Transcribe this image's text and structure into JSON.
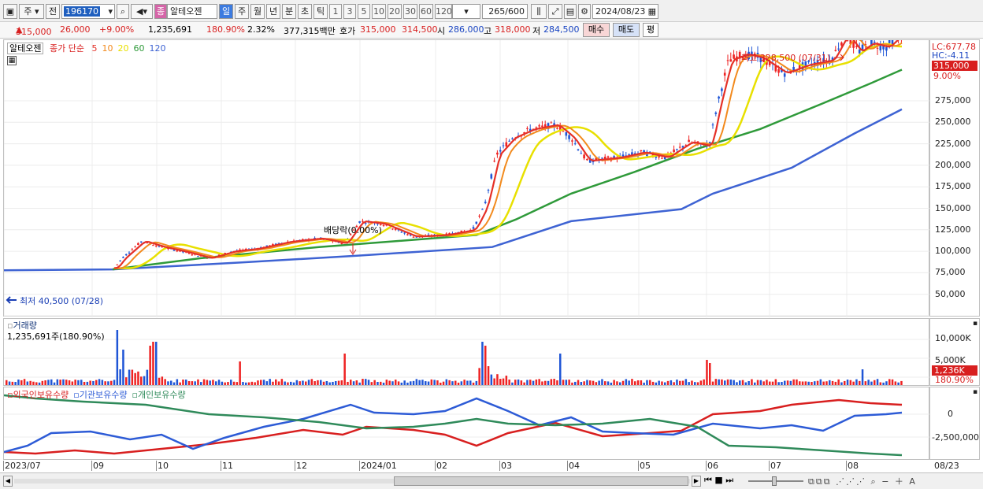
{
  "toolbar": {
    "market": "주",
    "type": "전",
    "code": "196170",
    "name": "알테오젠",
    "period_tabs": [
      "일",
      "주",
      "월",
      "년",
      "분",
      "초",
      "틱"
    ],
    "active_period": "일",
    "intervals": [
      "1",
      "3",
      "5",
      "10",
      "20",
      "30",
      "60",
      "120"
    ],
    "count": "265",
    "count_max": "/600",
    "date": "2024/08/23",
    "name_tag": "종"
  },
  "quote": {
    "price": "315,000",
    "change": "26,000",
    "rate": "+9.00%",
    "volume": "1,235,691",
    "vol_ratio": "180.90%",
    "turnover": "2.32%",
    "amount": "377,315백만",
    "ask_label": "호가",
    "ask": "315,000",
    "bid": "314,500",
    "open_label": "시",
    "open": "286,000",
    "high_label": "고",
    "high": "318,000",
    "low_label": "저",
    "low": "284,500",
    "buy": "매수",
    "sell": "매도",
    "eval": "평"
  },
  "price_pane": {
    "legend_name": "알테오젠",
    "legend_ma": "종가 단순",
    "ma": [
      {
        "label": "5",
        "color": "#e53027"
      },
      {
        "label": "10",
        "color": "#f28a1d"
      },
      {
        "label": "20",
        "color": "#e8e000"
      },
      {
        "label": "60",
        "color": "#2f9a3a"
      },
      {
        "label": "120",
        "color": "#3e63d3"
      }
    ],
    "max_note": "최고 328,500 (07/31)",
    "min_note": "최저 40,500 (07/28)",
    "event_note": "배당락(0.00%)",
    "lc": "LC:677.78",
    "hc": "HC:-4.11",
    "last_price": "315,000",
    "last_rate": "9.00%",
    "y_ticks": [
      "275,000",
      "250,000",
      "225,000",
      "200,000",
      "175,000",
      "150,000",
      "125,000",
      "100,000",
      "75,000",
      "50,000"
    ]
  },
  "volume_pane": {
    "title": "거래량",
    "value": "1,235,691주(180.90%)",
    "y_ticks": [
      "10,000K",
      "5,000K"
    ],
    "last": "1,236K",
    "last_rate": "180.90%"
  },
  "holdings_pane": {
    "series": [
      {
        "name": "외국인보유수량",
        "color": "#d81f1f"
      },
      {
        "name": "기관보유수량",
        "color": "#2d5bd6"
      },
      {
        "name": "개인보유수량",
        "color": "#2f8a5a"
      }
    ],
    "y_ticks": [
      "0",
      "-2,500,000"
    ]
  },
  "x_axis": {
    "labels": [
      "2023/07",
      "09",
      "10",
      "11",
      "12",
      "2024/01",
      "02",
      "03",
      "04",
      "05",
      "06",
      "07",
      "08"
    ],
    "end_label": "08/23"
  }
}
